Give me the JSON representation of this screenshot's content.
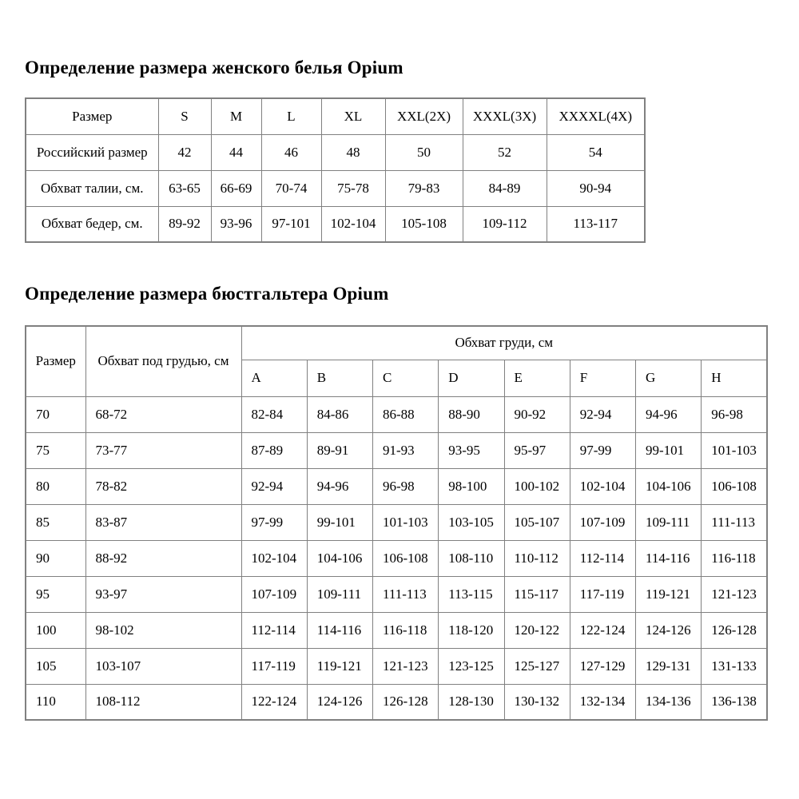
{
  "colors": {
    "table_border": "#808080",
    "text": "#000000",
    "background": "#ffffff"
  },
  "section1": {
    "title": "Определение размера женского белья Opium",
    "table": {
      "header_row": [
        "Размер",
        "S",
        "M",
        "L",
        "XL",
        "XXL(2X)",
        "XXXL(3X)",
        "XXXXL(4X)"
      ],
      "rows": [
        [
          "Российский размер",
          "42",
          "44",
          "46",
          "48",
          "50",
          "52",
          "54"
        ],
        [
          "Обхват талии, см.",
          "63-65",
          "66-69",
          "70-74",
          "75-78",
          "79-83",
          "84-89",
          "90-94"
        ],
        [
          "Обхват бедер, см.",
          "89-92",
          "93-96",
          "97-101",
          "102-104",
          "105-108",
          "109-112",
          "113-117"
        ]
      ]
    }
  },
  "section2": {
    "title": "Определение размера бюстгальтера Opium",
    "table": {
      "size_header": "Размер",
      "underbust_header": "Обхват под грудью, см",
      "bust_group_header": "Обхват груди, см",
      "cup_headers": [
        "A",
        "B",
        "C",
        "D",
        "E",
        "F",
        "G",
        "H"
      ],
      "rows": [
        {
          "size": "70",
          "underbust": "68-72",
          "cups": [
            "82-84",
            "84-86",
            "86-88",
            "88-90",
            "90-92",
            "92-94",
            "94-96",
            "96-98"
          ]
        },
        {
          "size": "75",
          "underbust": "73-77",
          "cups": [
            "87-89",
            "89-91",
            "91-93",
            "93-95",
            "95-97",
            "97-99",
            "99-101",
            "101-103"
          ]
        },
        {
          "size": "80",
          "underbust": "78-82",
          "cups": [
            "92-94",
            "94-96",
            "96-98",
            "98-100",
            "100-102",
            "102-104",
            "104-106",
            "106-108"
          ]
        },
        {
          "size": "85",
          "underbust": "83-87",
          "cups": [
            "97-99",
            "99-101",
            "101-103",
            "103-105",
            "105-107",
            "107-109",
            "109-111",
            "111-113"
          ]
        },
        {
          "size": "90",
          "underbust": "88-92",
          "cups": [
            "102-104",
            "104-106",
            "106-108",
            "108-110",
            "110-112",
            "112-114",
            "114-116",
            "116-118"
          ]
        },
        {
          "size": "95",
          "underbust": "93-97",
          "cups": [
            "107-109",
            "109-111",
            "111-113",
            "113-115",
            "115-117",
            "117-119",
            "119-121",
            "121-123"
          ]
        },
        {
          "size": "100",
          "underbust": "98-102",
          "cups": [
            "112-114",
            "114-116",
            "116-118",
            "118-120",
            "120-122",
            "122-124",
            "124-126",
            "126-128"
          ]
        },
        {
          "size": "105",
          "underbust": "103-107",
          "cups": [
            "117-119",
            "119-121",
            "121-123",
            "123-125",
            "125-127",
            "127-129",
            "129-131",
            "131-133"
          ]
        },
        {
          "size": "110",
          "underbust": "108-112",
          "cups": [
            "122-124",
            "124-126",
            "126-128",
            "128-130",
            "130-132",
            "132-134",
            "134-136",
            "136-138"
          ]
        }
      ]
    }
  }
}
